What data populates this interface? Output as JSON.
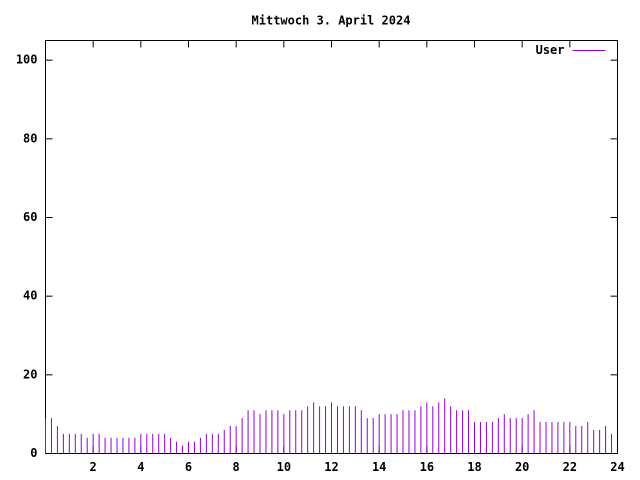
{
  "chart_data": {
    "type": "impulse",
    "title": "Mittwoch 3. April 2024",
    "x": [
      0,
      0.25,
      0.5,
      0.75,
      1,
      1.25,
      1.5,
      1.75,
      2,
      2.25,
      2.5,
      2.75,
      3,
      3.25,
      3.5,
      3.75,
      4,
      4.25,
      4.5,
      4.75,
      5,
      5.25,
      5.5,
      5.75,
      6,
      6.25,
      6.5,
      6.75,
      7,
      7.25,
      7.5,
      7.75,
      8,
      8.25,
      8.5,
      8.75,
      9,
      9.25,
      9.5,
      9.75,
      10,
      10.25,
      10.5,
      10.75,
      11,
      11.25,
      11.5,
      11.75,
      12,
      12.25,
      12.5,
      12.75,
      13,
      13.25,
      13.5,
      13.75,
      14,
      14.25,
      14.5,
      14.75,
      15,
      15.25,
      15.5,
      15.75,
      16,
      16.25,
      16.5,
      16.75,
      17,
      17.25,
      17.5,
      17.75,
      18,
      18.25,
      18.5,
      18.75,
      19,
      19.25,
      19.5,
      19.75,
      20,
      20.25,
      20.5,
      20.75,
      21,
      21.25,
      21.5,
      21.75,
      22,
      22.25,
      22.5,
      22.75,
      23,
      23.25,
      23.5,
      23.75
    ],
    "series": [
      {
        "name": "User",
        "color": "#9400d3",
        "values": [
          9,
          9,
          7,
          5,
          5,
          5,
          5,
          4,
          5,
          5,
          4,
          4,
          4,
          4,
          4,
          4,
          5,
          5,
          5,
          5,
          5,
          4,
          3,
          2,
          3,
          3,
          4,
          5,
          5,
          5,
          6,
          7,
          7,
          9,
          11,
          11,
          10,
          11,
          11,
          11,
          10,
          11,
          11,
          11,
          12,
          13,
          12,
          12,
          13,
          12,
          12,
          12,
          12,
          11,
          9,
          9,
          10,
          10,
          10,
          10,
          11,
          11,
          11,
          12,
          13,
          12,
          13,
          14,
          12,
          11,
          11,
          11,
          8,
          8,
          8,
          8,
          9,
          10,
          9,
          9,
          9,
          10,
          11,
          8,
          8,
          8,
          8,
          8,
          8,
          7,
          7,
          8,
          6,
          6,
          7,
          5
        ]
      }
    ],
    "xlim": [
      0,
      24
    ],
    "xticks": [
      2,
      4,
      6,
      8,
      10,
      12,
      14,
      16,
      18,
      20,
      22,
      24
    ],
    "ylim": [
      0,
      105
    ],
    "yticks": [
      0,
      20,
      40,
      60,
      80,
      100
    ],
    "legend": "top-right"
  }
}
